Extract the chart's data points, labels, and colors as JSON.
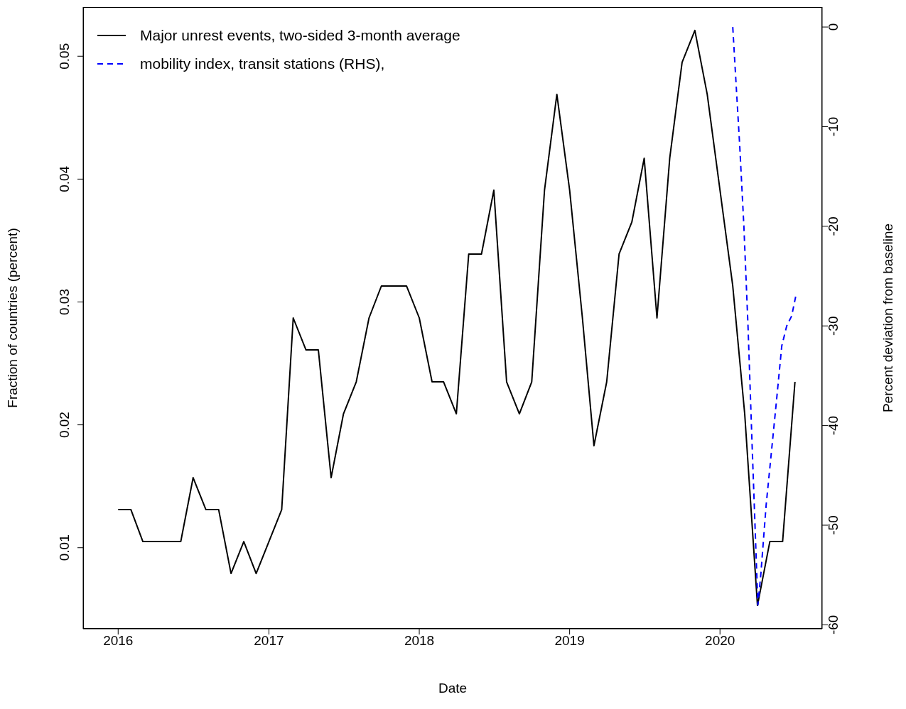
{
  "chart_data": {
    "type": "line",
    "xlabel": "Date",
    "ylabel": "Fraction of countries (percent)",
    "y2label": "Percent deviation from baseline",
    "xlim": [
      "2015-10-08",
      "2020-09-05"
    ],
    "xticks": [
      "2016",
      "2017",
      "2018",
      "2019",
      "2020"
    ],
    "ylim": [
      0.0034,
      0.054
    ],
    "yticks": [
      0.01,
      0.02,
      0.03,
      0.04,
      0.05
    ],
    "y2lim": [
      -60.4,
      2
    ],
    "y2ticks": [
      -60,
      -50,
      -40,
      -30,
      -20,
      -10,
      0
    ],
    "legend": "top left",
    "grid": false,
    "marker": "none",
    "series": [
      {
        "name": "Major unrest events, two-sided 3-month average",
        "color": "#000000",
        "line_style": "solid",
        "x": [
          "2016-01",
          "2016-02",
          "2016-03",
          "2016-04",
          "2016-05",
          "2016-06",
          "2016-07",
          "2016-08",
          "2016-09",
          "2016-10",
          "2016-11",
          "2016-12",
          "2017-01",
          "2017-02",
          "2017-03",
          "2017-04",
          "2017-05",
          "2017-06",
          "2017-07",
          "2017-08",
          "2017-09",
          "2017-10",
          "2017-11",
          "2017-12",
          "2018-01",
          "2018-02",
          "2018-03",
          "2018-04",
          "2018-05",
          "2018-06",
          "2018-07",
          "2018-08",
          "2018-09",
          "2018-10",
          "2018-11",
          "2018-12",
          "2019-01",
          "2019-02",
          "2019-03",
          "2019-04",
          "2019-05",
          "2019-06",
          "2019-07",
          "2019-08",
          "2019-09",
          "2019-10",
          "2019-11",
          "2019-12",
          "2020-01",
          "2020-02",
          "2020-03",
          "2020-04",
          "2020-05",
          "2020-06",
          "2020-07"
        ],
        "values": [
          0.0131,
          0.0131,
          0.0105,
          0.0105,
          0.0105,
          0.0105,
          0.0157,
          0.0131,
          0.0131,
          0.0079,
          0.0105,
          0.0079,
          0.0105,
          0.0131,
          0.0287,
          0.0261,
          0.0261,
          0.0157,
          0.0209,
          0.0235,
          0.0287,
          0.0313,
          0.0313,
          0.0313,
          0.0287,
          0.0235,
          0.0235,
          0.0209,
          0.0339,
          0.0339,
          0.0391,
          0.0235,
          0.0209,
          0.0235,
          0.0391,
          0.0469,
          0.0391,
          0.0287,
          0.0183,
          0.0235,
          0.0339,
          0.0365,
          0.0417,
          0.0287,
          0.0417,
          0.0495,
          0.0521,
          0.0469,
          0.0391,
          0.0313,
          0.0209,
          0.0053,
          0.0105,
          0.0105,
          0.0235
        ]
      },
      {
        "name": "mobility index, transit stations (RHS),",
        "color": "#0000ff",
        "line_style": "dashed",
        "axis": "y2",
        "x": [
          "2020-02-01",
          "2020-02-18",
          "2020-02-28",
          "2020-03-09",
          "2020-03-19",
          "2020-03-26",
          "2020-04-02",
          "2020-04-09",
          "2020-04-22",
          "2020-05-04",
          "2020-05-16",
          "2020-05-30",
          "2020-06-11",
          "2020-06-23",
          "2020-07-03"
        ],
        "values": [
          0,
          -12,
          -20,
          -30,
          -42,
          -50,
          -58,
          -55,
          -48,
          -43,
          -38,
          -32,
          -30,
          -29,
          -27
        ]
      }
    ]
  }
}
